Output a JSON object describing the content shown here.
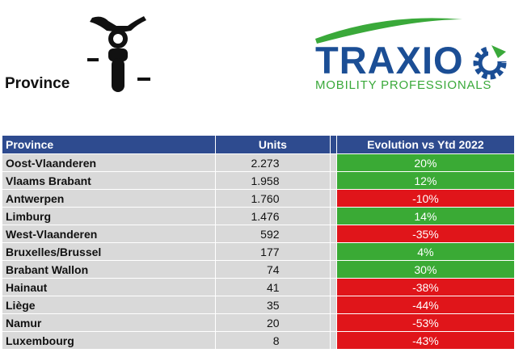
{
  "header": {
    "page_title": "Province",
    "scooter_icon": "scooter-icon"
  },
  "logo": {
    "name": "TRAXIO",
    "tagline": "MOBILITY PROFESSIONALS",
    "colors": {
      "word": "#1b4e95",
      "tagline": "#3aa93a"
    }
  },
  "table": {
    "columns": [
      "Province",
      "Units",
      "Evolution vs Ytd 2022"
    ],
    "colors": {
      "header": "#2e4b8f",
      "cell": "#d9d9d9",
      "positive": "#3aaa35",
      "negative": "#e0151a"
    },
    "rows": [
      {
        "province": "Oost-Vlaanderen",
        "units": "2.273",
        "evolution": "20%",
        "trend": "positive"
      },
      {
        "province": "Vlaams Brabant",
        "units": "1.958",
        "evolution": "12%",
        "trend": "positive"
      },
      {
        "province": "Antwerpen",
        "units": "1.760",
        "evolution": "-10%",
        "trend": "negative"
      },
      {
        "province": "Limburg",
        "units": "1.476",
        "evolution": "14%",
        "trend": "positive"
      },
      {
        "province": "West-Vlaanderen",
        "units": "592",
        "evolution": "-35%",
        "trend": "negative"
      },
      {
        "province": "Bruxelles/Brussel",
        "units": "177",
        "evolution": "4%",
        "trend": "positive"
      },
      {
        "province": "Brabant Wallon",
        "units": "74",
        "evolution": "30%",
        "trend": "positive"
      },
      {
        "province": "Hainaut",
        "units": "41",
        "evolution": "-38%",
        "trend": "negative"
      },
      {
        "province": "Liège",
        "units": "35",
        "evolution": "-44%",
        "trend": "negative"
      },
      {
        "province": "Namur",
        "units": "20",
        "evolution": "-53%",
        "trend": "negative"
      },
      {
        "province": "Luxembourg",
        "units": "8",
        "evolution": "-43%",
        "trend": "negative"
      }
    ]
  }
}
